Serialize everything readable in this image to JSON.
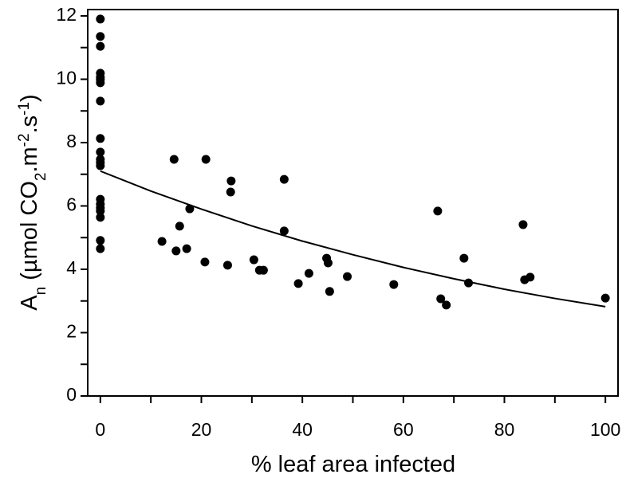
{
  "chart_data": {
    "type": "scatter",
    "xlabel": "% leaf area infected",
    "ylabel": [
      {
        "text": "A"
      },
      {
        "text": "n",
        "shift": "sub"
      },
      {
        "text": " (µmol CO"
      },
      {
        "text": "2",
        "shift": "sub"
      },
      {
        "text": ".m"
      },
      {
        "text": "-2",
        "shift": "super"
      },
      {
        "text": ".s"
      },
      {
        "text": "-1",
        "shift": "super"
      },
      {
        "text": ")"
      }
    ],
    "xlim": [
      -2.5,
      102.5
    ],
    "ylim": [
      0,
      12.2
    ],
    "xticks": [
      0,
      20,
      40,
      60,
      80,
      100
    ],
    "xminorticks": [
      10,
      30,
      50,
      70,
      90
    ],
    "yticks": [
      0,
      2,
      4,
      6,
      8,
      10,
      12
    ],
    "yminorticks": [
      1,
      3,
      5,
      7,
      9,
      11
    ],
    "series": [
      {
        "kind": "points",
        "color": "#000000",
        "x": [
          0,
          0,
          0,
          0,
          0,
          0,
          0,
          0,
          0,
          0,
          0,
          0,
          0,
          0,
          0,
          0,
          0,
          0,
          0,
          0,
          12.2,
          14.6,
          15.0,
          15.7,
          17.1,
          17.7,
          20.7,
          20.9,
          25.2,
          25.9,
          25.8,
          30.4,
          31.5,
          32.3,
          36.4,
          36.4,
          39.2,
          41.3,
          44.8,
          45.1,
          45.4,
          48.9,
          58.1,
          66.8,
          67.4,
          68.5,
          72.0,
          72.9,
          83.7,
          84.0,
          85.1,
          100
        ],
        "values": [
          11.9,
          11.35,
          11.04,
          10.19,
          10.06,
          9.99,
          9.89,
          9.31,
          8.13,
          7.7,
          7.47,
          7.37,
          7.27,
          6.21,
          6.06,
          5.94,
          5.84,
          5.64,
          4.91,
          4.65,
          4.88,
          7.47,
          4.58,
          5.36,
          4.65,
          5.91,
          4.23,
          7.47,
          4.13,
          6.79,
          6.44,
          4.3,
          3.97,
          3.97,
          6.84,
          5.21,
          3.55,
          3.87,
          4.35,
          4.2,
          3.3,
          3.77,
          3.52,
          5.84,
          3.07,
          2.87,
          4.35,
          3.57,
          5.41,
          3.67,
          3.75,
          3.09
        ]
      },
      {
        "kind": "line",
        "color": "#000000",
        "x": [
          0,
          10,
          20,
          30,
          40,
          50,
          60,
          70,
          80,
          90,
          100
        ],
        "values": [
          7.1,
          6.47,
          5.9,
          5.37,
          4.89,
          4.46,
          4.06,
          3.7,
          3.37,
          3.08,
          2.82
        ]
      }
    ]
  }
}
